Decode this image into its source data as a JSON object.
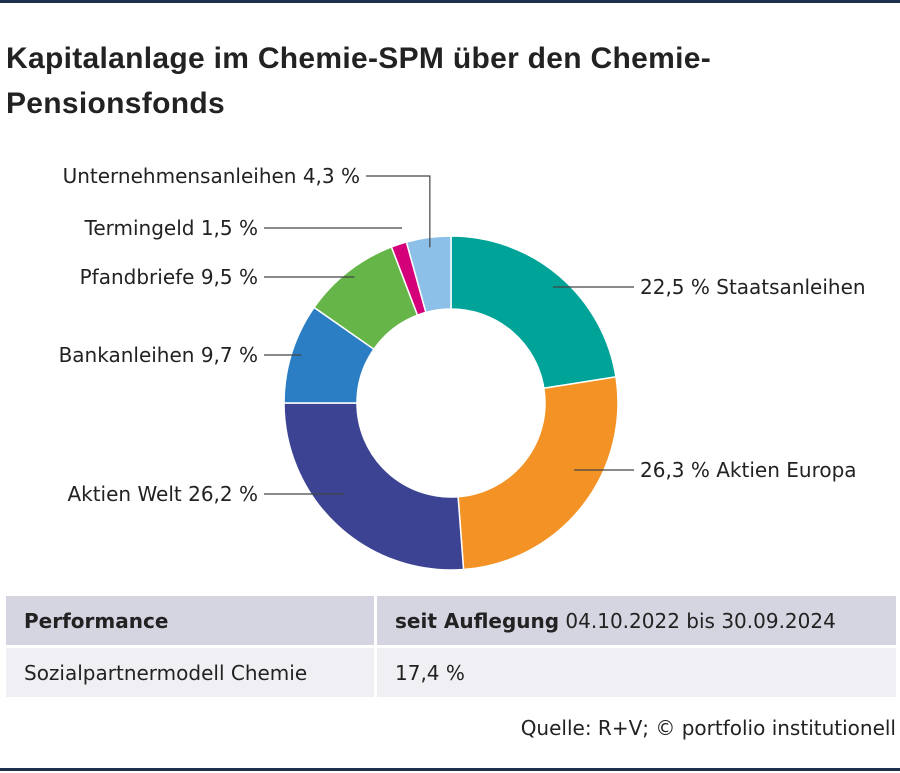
{
  "title": "Kapitalanlage im Chemie-SPM über den Chemie-Pensionsfonds",
  "chart_data": {
    "type": "pie",
    "donut": true,
    "slices": [
      {
        "name": "Staatsanleihen",
        "value": 22.5,
        "label": "22,5 % Staatsanleihen",
        "color": "#00a397"
      },
      {
        "name": "Aktien Europa",
        "value": 26.3,
        "label": "26,3 % Aktien Europa",
        "color": "#f39325"
      },
      {
        "name": "Aktien Welt",
        "value": 26.2,
        "label": "Aktien Welt 26,2 %",
        "color": "#3c4393"
      },
      {
        "name": "Bankanleihen",
        "value": 9.7,
        "label": "Bankanleihen 9,7 %",
        "color": "#2c7ec4"
      },
      {
        "name": "Pfandbriefe",
        "value": 9.5,
        "label": "Pfandbriefe 9,5 %",
        "color": "#66b548"
      },
      {
        "name": "Termingeld",
        "value": 1.5,
        "label": "Termingeld 1,5 %",
        "color": "#d4007a"
      },
      {
        "name": "Unternehmensanleihen",
        "value": 4.3,
        "label": "Unternehmensanleihen 4,3 %",
        "color": "#8cc0e8"
      }
    ]
  },
  "table": {
    "header": {
      "col1": "Performance",
      "col2_bold": "seit Auflegung",
      "col2_rest": " 04.10.2022 bis 30.09.2024"
    },
    "row": {
      "col1": "Sozialpartnermodell Chemie",
      "col2": "17,4 %"
    }
  },
  "source": "Quelle: R+V; © portfolio institutionell"
}
